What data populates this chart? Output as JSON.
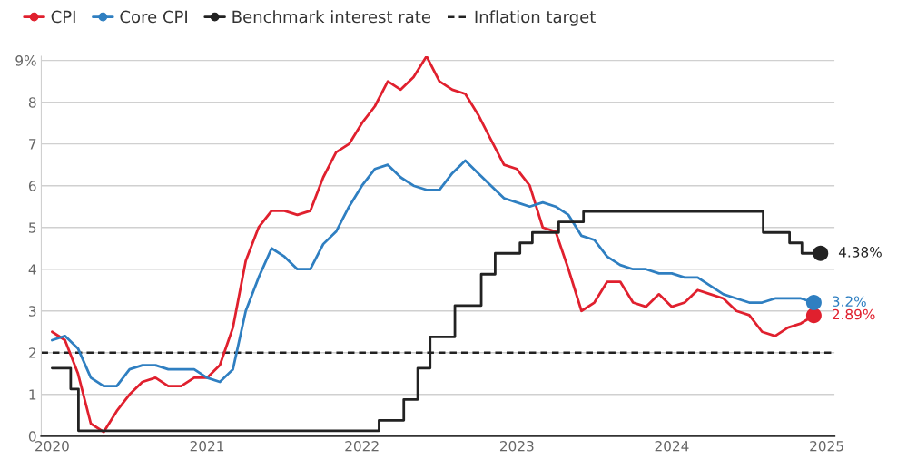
{
  "chart_data": {
    "type": "line",
    "legend": "top left",
    "grid": "y",
    "marker": "none",
    "line_style": "solid",
    "xlim": [
      2019.93,
      2025.05
    ],
    "xticks": [
      2020,
      2021,
      2022,
      2023,
      2024,
      2025
    ],
    "ylim": [
      0,
      9.1
    ],
    "yticks": [
      0,
      1,
      2,
      3,
      4,
      5,
      6,
      7,
      8,
      {
        "value": 9,
        "label": "9%"
      }
    ],
    "series": [
      {
        "name": "CPI",
        "color": "#e0202e",
        "x": [
          2020.0,
          2020.083,
          2020.167,
          2020.25,
          2020.333,
          2020.417,
          2020.5,
          2020.583,
          2020.667,
          2020.75,
          2020.833,
          2020.917,
          2021.0,
          2021.083,
          2021.167,
          2021.25,
          2021.333,
          2021.417,
          2021.5,
          2021.583,
          2021.667,
          2021.75,
          2021.833,
          2021.917,
          2022.0,
          2022.083,
          2022.167,
          2022.25,
          2022.333,
          2022.417,
          2022.5,
          2022.583,
          2022.667,
          2022.75,
          2022.833,
          2022.917,
          2023.0,
          2023.083,
          2023.167,
          2023.25,
          2023.333,
          2023.417,
          2023.5,
          2023.583,
          2023.667,
          2023.75,
          2023.833,
          2023.917,
          2024.0,
          2024.083,
          2024.167,
          2024.25,
          2024.333,
          2024.417,
          2024.5,
          2024.583,
          2024.667,
          2024.75,
          2024.833,
          2024.917
        ],
        "values": [
          2.5,
          2.3,
          1.5,
          0.3,
          0.1,
          0.6,
          1.0,
          1.3,
          1.4,
          1.2,
          1.2,
          1.4,
          1.4,
          1.7,
          2.6,
          4.2,
          5.0,
          5.4,
          5.4,
          5.3,
          5.4,
          6.2,
          6.8,
          7.0,
          7.5,
          7.9,
          8.5,
          8.3,
          8.6,
          9.1,
          8.5,
          8.3,
          8.2,
          7.7,
          7.1,
          6.5,
          6.4,
          6.0,
          5.0,
          4.9,
          4.0,
          3.0,
          3.2,
          3.7,
          3.7,
          3.2,
          3.1,
          3.4,
          3.1,
          3.2,
          3.5,
          3.4,
          3.3,
          3.0,
          2.9,
          2.5,
          2.4,
          2.6,
          2.7,
          2.89
        ]
      },
      {
        "name": "Core CPI",
        "color": "#2f7fc1",
        "x": [
          2020.0,
          2020.083,
          2020.167,
          2020.25,
          2020.333,
          2020.417,
          2020.5,
          2020.583,
          2020.667,
          2020.75,
          2020.833,
          2020.917,
          2021.0,
          2021.083,
          2021.167,
          2021.25,
          2021.333,
          2021.417,
          2021.5,
          2021.583,
          2021.667,
          2021.75,
          2021.833,
          2021.917,
          2022.0,
          2022.083,
          2022.167,
          2022.25,
          2022.333,
          2022.417,
          2022.5,
          2022.583,
          2022.667,
          2022.75,
          2022.833,
          2022.917,
          2023.0,
          2023.083,
          2023.167,
          2023.25,
          2023.333,
          2023.417,
          2023.5,
          2023.583,
          2023.667,
          2023.75,
          2023.833,
          2023.917,
          2024.0,
          2024.083,
          2024.167,
          2024.25,
          2024.333,
          2024.417,
          2024.5,
          2024.583,
          2024.667,
          2024.75,
          2024.833,
          2024.917
        ],
        "values": [
          2.3,
          2.4,
          2.1,
          1.4,
          1.2,
          1.2,
          1.6,
          1.7,
          1.7,
          1.6,
          1.6,
          1.6,
          1.4,
          1.3,
          1.6,
          3.0,
          3.8,
          4.5,
          4.3,
          4.0,
          4.0,
          4.6,
          4.9,
          5.5,
          6.0,
          6.4,
          6.5,
          6.2,
          6.0,
          5.9,
          5.9,
          6.3,
          6.6,
          6.3,
          6.0,
          5.7,
          5.6,
          5.5,
          5.6,
          5.5,
          5.3,
          4.8,
          4.7,
          4.3,
          4.1,
          4.0,
          4.0,
          3.9,
          3.9,
          3.8,
          3.8,
          3.6,
          3.4,
          3.3,
          3.2,
          3.2,
          3.3,
          3.3,
          3.3,
          3.2
        ]
      },
      {
        "name": "Benchmark interest rate",
        "color": "#222222",
        "type": "step",
        "x": [
          2020.0,
          2020.12,
          2020.17,
          2022.11,
          2022.27,
          2022.36,
          2022.44,
          2022.6,
          2022.77,
          2022.86,
          2023.02,
          2023.1,
          2023.27,
          2023.43,
          2024.59,
          2024.76,
          2024.84,
          2024.96
        ],
        "values": [
          1.63,
          1.13,
          0.13,
          0.38,
          0.88,
          1.63,
          2.38,
          3.13,
          3.88,
          4.38,
          4.63,
          4.88,
          5.13,
          5.38,
          4.88,
          4.63,
          4.38,
          4.38
        ]
      }
    ],
    "ref_lines": [
      {
        "axis": "y",
        "value": 2,
        "label": "Inflation target",
        "color": "#222222",
        "line_style": "dashed"
      }
    ],
    "annotations": [
      "2.89%",
      "3.2%",
      "4.38%"
    ]
  }
}
